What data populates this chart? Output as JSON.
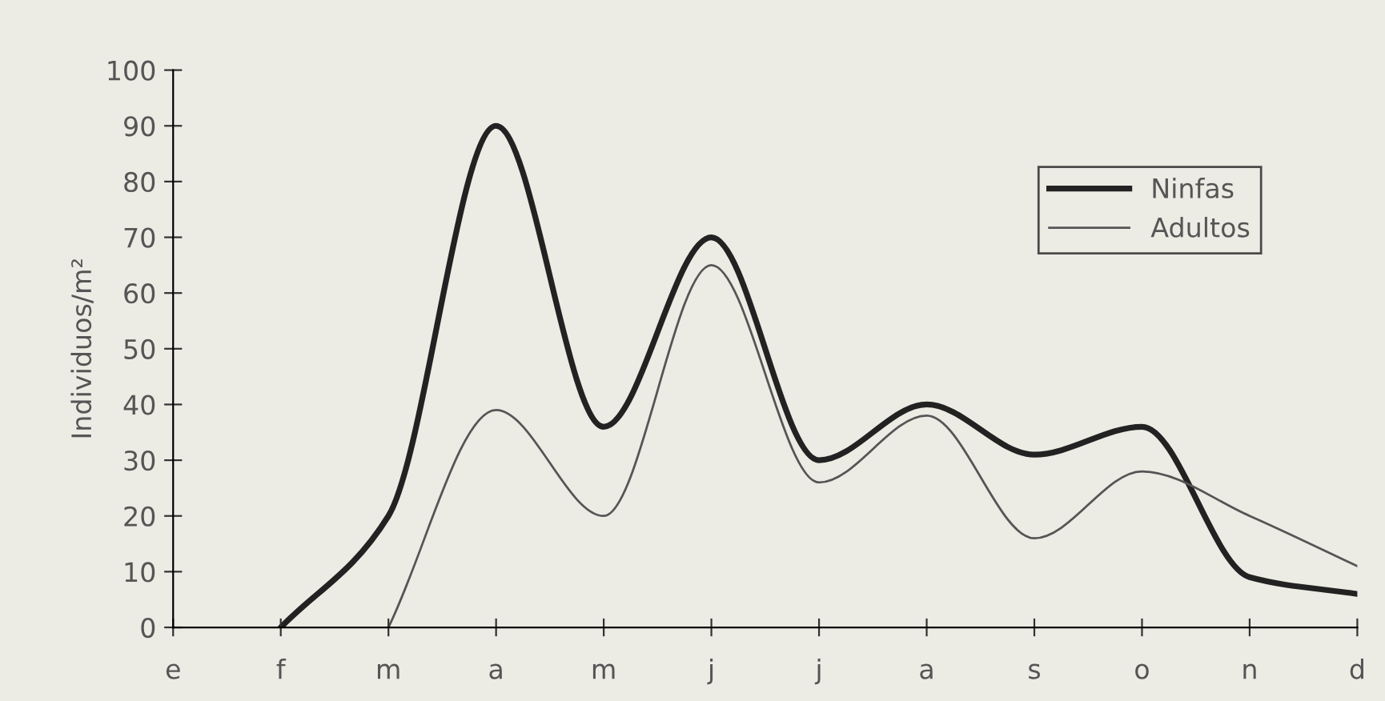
{
  "chart_data": {
    "type": "line",
    "ylabel": "Individuos/m²",
    "categories": [
      "e",
      "f",
      "m",
      "a",
      "m",
      "j",
      "j",
      "a",
      "s",
      "o",
      "n",
      "d"
    ],
    "series": [
      {
        "name": "Ninfas",
        "color": "#222222",
        "values": [
          null,
          0,
          20,
          90,
          36,
          70,
          30,
          40,
          31,
          36,
          9,
          6
        ]
      },
      {
        "name": "Adultos",
        "color": "#555555",
        "values": [
          null,
          null,
          0,
          39,
          20,
          65,
          26,
          38,
          16,
          28,
          20,
          11
        ]
      }
    ],
    "ylim": [
      0,
      100
    ],
    "yticks": [
      0,
      10,
      20,
      30,
      40,
      50,
      60,
      70,
      80,
      90,
      100
    ],
    "grid": false,
    "legend": "top right",
    "marker": "none",
    "line_style": "solid"
  }
}
